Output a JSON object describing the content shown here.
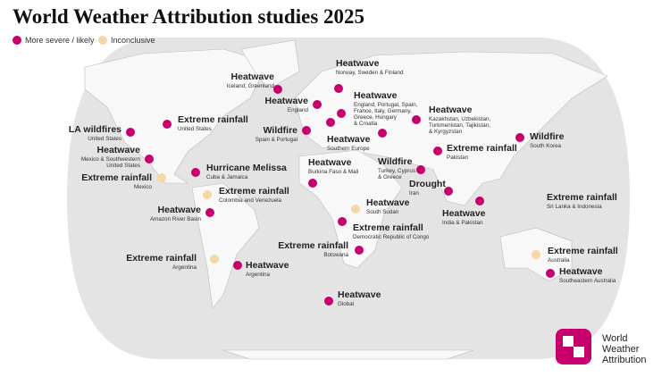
{
  "title": "World Weather Attribution studies 2025",
  "legend": [
    {
      "label": "More severe / likely",
      "color": "#c8006e"
    },
    {
      "label": "Inconclusive",
      "color": "#f5d6a6"
    }
  ],
  "events": [
    {
      "title": "Heatwave",
      "subtitle": [
        "Norway, Sweden & Finland"
      ],
      "color": "#c8006e"
    },
    {
      "title": "Heatwave",
      "subtitle": [
        "Iceland, Greenland"
      ],
      "color": "#c8006e"
    },
    {
      "title": "Heatwave",
      "subtitle": [
        "England"
      ],
      "color": "#c8006e"
    },
    {
      "title": "Heatwave",
      "subtitle": [
        "England, Portugal, Spain,",
        "France, Italy, Germany,",
        "Greece, Hungary",
        "& Croatia"
      ],
      "color": "#c8006e"
    },
    {
      "title": "Heatwave",
      "subtitle": [
        "Kazakhstan, Uzbekistan,",
        "Turkmenistan, Tajikistan,",
        "& Kyrgyzstan"
      ],
      "color": "#c8006e"
    },
    {
      "title": "Extreme rainfall",
      "subtitle": [
        "United States"
      ],
      "color": "#c8006e"
    },
    {
      "title": "LA wildfires",
      "subtitle": [
        "United States"
      ],
      "color": "#c8006e"
    },
    {
      "title": "Wildfire",
      "subtitle": [
        "Spain & Portugal"
      ],
      "color": "#c8006e"
    },
    {
      "title": "Heatwave",
      "subtitle": [
        "Southern Europe"
      ],
      "color": "#c8006e"
    },
    {
      "title": "Wildfire",
      "subtitle": [
        "South Korea"
      ],
      "color": "#c8006e"
    },
    {
      "title": "Extreme rainfall",
      "subtitle": [
        "Pakistan"
      ],
      "color": "#c8006e"
    },
    {
      "title": "Heatwave",
      "subtitle": [
        "Mexico & Southwestern",
        "United States"
      ],
      "color": "#c8006e"
    },
    {
      "title": "Wildfire",
      "subtitle": [
        "Turkey, Cyprus",
        "& Greece"
      ],
      "color": "#c8006e"
    },
    {
      "title": "Heatwave",
      "subtitle": [
        "Burkina Faso & Mali"
      ],
      "color": "#c8006e"
    },
    {
      "title": "Hurricane Melissa",
      "subtitle": [
        "Cuba & Jamaica"
      ],
      "color": "#c8006e"
    },
    {
      "title": "Extreme rainfall",
      "subtitle": [
        "Mexico"
      ],
      "color": "#f5d6a6"
    },
    {
      "title": "Drought",
      "subtitle": [
        "Iran"
      ],
      "color": "#c8006e"
    },
    {
      "title": "Heatwave",
      "subtitle": [
        "India & Pakistan"
      ],
      "color": "#c8006e"
    },
    {
      "title": "Extreme rainfall",
      "subtitle": [
        "Colombia and Venezuela"
      ],
      "color": "#f5d6a6"
    },
    {
      "title": "Extreme rainfall",
      "subtitle": [
        "Sri Lanka & Indonesia"
      ],
      "color": "#c8006e"
    },
    {
      "title": "Heatwave",
      "subtitle": [
        "South Sudan"
      ],
      "color": "#f5d6a6"
    },
    {
      "title": "Heatwave",
      "subtitle": [
        "Amazon River Basin"
      ],
      "color": "#c8006e"
    },
    {
      "title": "Extreme rainfall",
      "subtitle": [
        "Democratic Republic of Congo"
      ],
      "color": "#c8006e"
    },
    {
      "title": "Extreme rainfall",
      "subtitle": [
        "Botswana"
      ],
      "color": "#c8006e"
    },
    {
      "title": "Extreme rainfall",
      "subtitle": [
        "Argentina"
      ],
      "color": "#f5d6a6"
    },
    {
      "title": "Heatwave",
      "subtitle": [
        "Argentina"
      ],
      "color": "#c8006e"
    },
    {
      "title": "Extreme rainfall",
      "subtitle": [
        "Australia"
      ],
      "color": "#f5d6a6"
    },
    {
      "title": "Heatwave",
      "subtitle": [
        "Southeastern Australia"
      ],
      "color": "#c8006e"
    },
    {
      "title": "Heatwave",
      "subtitle": [
        "Global"
      ],
      "color": "#c8006e"
    }
  ],
  "logo": [
    "World",
    "Weather",
    "Attribution"
  ]
}
